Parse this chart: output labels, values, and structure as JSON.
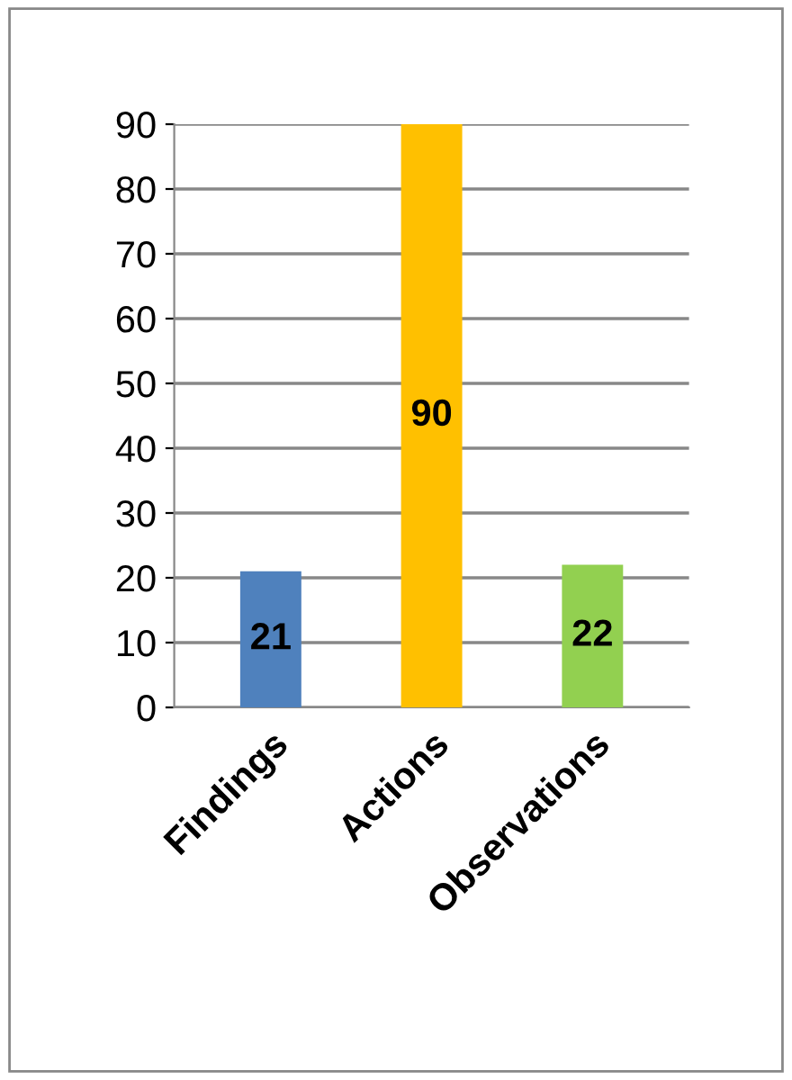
{
  "chart_data": {
    "type": "bar",
    "categories": [
      "Findings",
      "Actions",
      "Observations"
    ],
    "values": [
      21,
      90,
      22
    ],
    "colors": [
      "#4f81bd",
      "#ffc000",
      "#92d050"
    ],
    "ylim": [
      0,
      90
    ],
    "yticks": [
      0,
      10,
      20,
      30,
      40,
      50,
      60,
      70,
      80,
      90
    ],
    "grid": "y",
    "data_labels": true,
    "legend": false
  }
}
